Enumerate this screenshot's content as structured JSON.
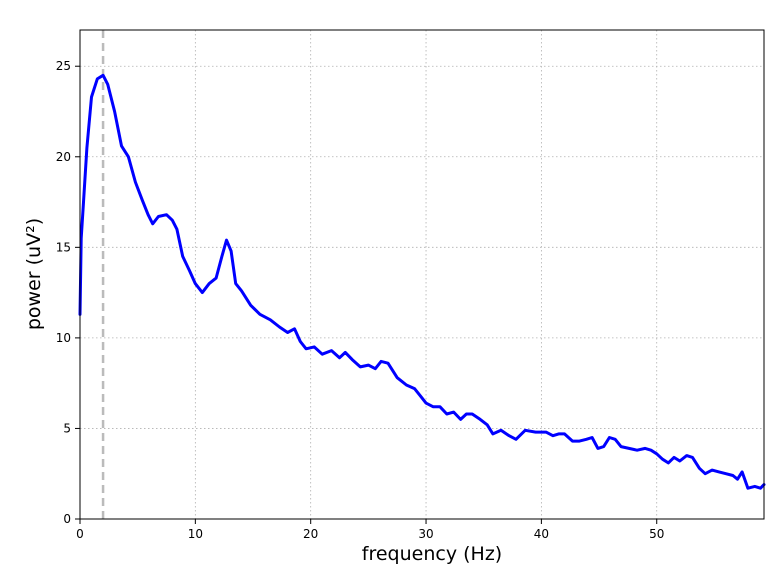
{
  "chart_data": {
    "type": "line",
    "title": "",
    "xlabel": "frequency (Hz)",
    "ylabel": "power (uV²)",
    "xlim": [
      0,
      59.3
    ],
    "ylim": [
      0,
      27
    ],
    "xticks": [
      0,
      10,
      20,
      30,
      40,
      50
    ],
    "yticks": [
      0,
      5,
      10,
      15,
      20,
      25
    ],
    "grid": true,
    "legend": "none",
    "reference_line": {
      "x": 2,
      "style": "dashed",
      "color": "#bbbbbb"
    },
    "series": [
      {
        "color": "#0000ff",
        "x": [
          0,
          0.1,
          0.3,
          0.6,
          1.0,
          1.5,
          2.0,
          2.4,
          3.0,
          3.6,
          4.2,
          4.8,
          5.4,
          5.9,
          6.3,
          6.8,
          7.5,
          8.0,
          8.4,
          8.9,
          9.5,
          10.0,
          10.6,
          11.2,
          11.8,
          12.3,
          12.7,
          13.1,
          13.5,
          14.0,
          14.8,
          15.6,
          16.5,
          17.3,
          18.0,
          18.6,
          19.1,
          19.6,
          20.3,
          21.0,
          21.8,
          22.5,
          23.0,
          23.6,
          24.3,
          25.0,
          25.6,
          26.1,
          26.7,
          27.5,
          28.3,
          29.0,
          29.5,
          30.0,
          30.6,
          31.2,
          31.8,
          32.4,
          33.0,
          33.5,
          34.0,
          34.7,
          35.3,
          35.8,
          36.5,
          37.2,
          37.8,
          38.6,
          39.5,
          40.4,
          41.0,
          41.5,
          42.0,
          42.7,
          43.3,
          43.9,
          44.4,
          44.9,
          45.4,
          45.9,
          46.4,
          46.9,
          47.6,
          48.3,
          49.0,
          49.5,
          50.0,
          50.5,
          51.0,
          51.5,
          52.0,
          52.6,
          53.1,
          53.7,
          54.2,
          54.8,
          55.4,
          56.0,
          56.6,
          57.0,
          57.4,
          57.9,
          58.5,
          59.0,
          59.3
        ],
        "y": [
          11.3,
          15.5,
          17.5,
          20.5,
          23.3,
          24.3,
          24.5,
          24.0,
          22.5,
          20.6,
          20.0,
          18.6,
          17.6,
          16.8,
          16.3,
          16.7,
          16.8,
          16.5,
          16.0,
          14.5,
          13.7,
          13.0,
          12.5,
          13.0,
          13.3,
          14.5,
          15.4,
          14.8,
          13.0,
          12.6,
          11.8,
          11.3,
          11.0,
          10.6,
          10.3,
          10.5,
          9.8,
          9.4,
          9.5,
          9.1,
          9.3,
          8.9,
          9.2,
          8.8,
          8.4,
          8.5,
          8.3,
          8.7,
          8.6,
          7.8,
          7.4,
          7.2,
          6.8,
          6.4,
          6.2,
          6.2,
          5.8,
          5.9,
          5.5,
          5.8,
          5.8,
          5.5,
          5.2,
          4.7,
          4.9,
          4.6,
          4.4,
          4.9,
          4.8,
          4.8,
          4.6,
          4.7,
          4.7,
          4.3,
          4.3,
          4.4,
          4.5,
          3.9,
          4.0,
          4.5,
          4.4,
          4.0,
          3.9,
          3.8,
          3.9,
          3.8,
          3.6,
          3.3,
          3.1,
          3.4,
          3.2,
          3.5,
          3.4,
          2.8,
          2.5,
          2.7,
          2.6,
          2.5,
          2.4,
          2.2,
          2.6,
          1.7,
          1.8,
          1.7,
          1.9
        ]
      }
    ]
  }
}
